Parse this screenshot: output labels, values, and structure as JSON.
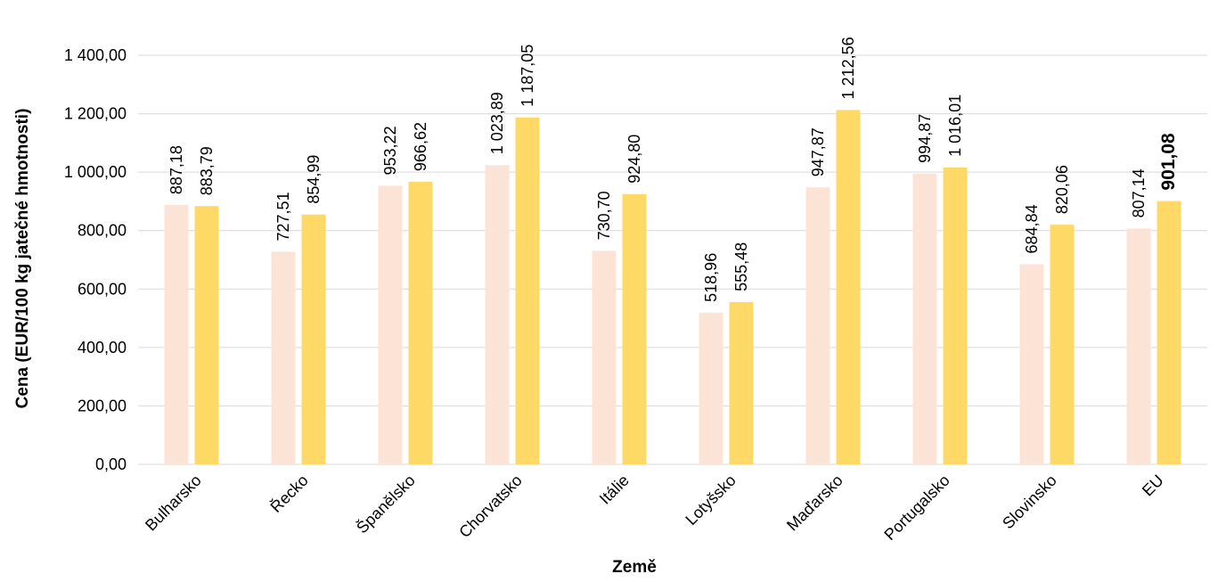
{
  "chart_data": {
    "type": "bar",
    "title": "",
    "xlabel": "Země",
    "ylabel": "Cena (EUR/100 kg jatečné hmotnosti)",
    "categories": [
      "Bulharsko",
      "Řecko",
      "Španělsko",
      "Chorvatsko",
      "Itálie",
      "Lotyšsko",
      "Maďarsko",
      "Portugalsko",
      "Slovinsko",
      "EU"
    ],
    "series": [
      {
        "values": [
          887.18,
          727.51,
          953.22,
          1023.89,
          730.7,
          518.96,
          947.87,
          994.87,
          684.84,
          807.14
        ],
        "labels": [
          "887,18",
          "727,51",
          "953,22",
          "1 023,89",
          "730,70",
          "518,96",
          "947,87",
          "994,87",
          "684,84",
          "807,14"
        ],
        "color": "#FBE3D6"
      },
      {
        "values": [
          883.79,
          854.99,
          966.62,
          1187.05,
          924.8,
          555.48,
          1212.56,
          1016.01,
          820.06,
          901.08
        ],
        "labels": [
          "883,79",
          "854,99",
          "966,62",
          "1 187,05",
          "924,80",
          "555,48",
          "1 212,56",
          "1 016,01",
          "820,06",
          "901,08"
        ],
        "color": "#FFD966"
      }
    ],
    "yticks": [
      "0,00",
      "200,00",
      "400,00",
      "600,00",
      "800,00",
      "1 000,00",
      "1 200,00",
      "1 400,00"
    ],
    "ylim": [
      0,
      1400
    ],
    "grid": true,
    "legend": "none",
    "highlight": "EU"
  }
}
